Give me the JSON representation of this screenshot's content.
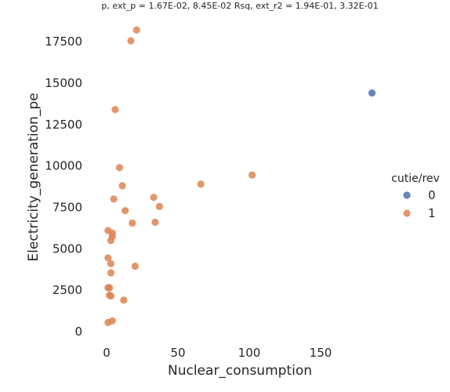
{
  "chart_data": {
    "type": "scatter",
    "title": "p, ext_p = 1.67E-02, 8.45E-02 Rsq, ext_r2 = 1.94E-01, 3.32E-01",
    "xlabel": "Nuclear_consumption",
    "ylabel": "Electricity_generation_pe",
    "xlim": [
      -10,
      200
    ],
    "ylim": [
      -500,
      18600
    ],
    "x_ticks": [
      0,
      50,
      100,
      150
    ],
    "y_ticks": [
      0,
      2500,
      5000,
      7500,
      10000,
      12500,
      15000,
      17500
    ],
    "grid": false,
    "legend": {
      "title": "cutie/rev",
      "placement": "right",
      "entries": [
        {
          "label": "0",
          "color": "#4c72b0"
        },
        {
          "label": "1",
          "color": "#dd8452"
        }
      ]
    },
    "series": [
      {
        "name": "0",
        "color": "#4c72b0",
        "points": [
          [
            186,
            14400
          ]
        ]
      },
      {
        "name": "1",
        "color": "#dd8452",
        "points": [
          [
            21,
            18200
          ],
          [
            17,
            17550
          ],
          [
            6,
            13400
          ],
          [
            9,
            9900
          ],
          [
            102,
            9450
          ],
          [
            66,
            8900
          ],
          [
            11,
            8800
          ],
          [
            33,
            8100
          ],
          [
            5,
            8000
          ],
          [
            37,
            7550
          ],
          [
            13,
            7300
          ],
          [
            18,
            6550
          ],
          [
            34,
            6600
          ],
          [
            1,
            6100
          ],
          [
            4,
            5950
          ],
          [
            4,
            5750
          ],
          [
            3,
            5500
          ],
          [
            1,
            4450
          ],
          [
            3,
            4100
          ],
          [
            20,
            3950
          ],
          [
            3,
            3550
          ],
          [
            1,
            2650
          ],
          [
            2,
            2650
          ],
          [
            2,
            2200
          ],
          [
            3,
            2150
          ],
          [
            12,
            1900
          ],
          [
            4,
            650
          ],
          [
            1,
            550
          ]
        ]
      }
    ]
  }
}
